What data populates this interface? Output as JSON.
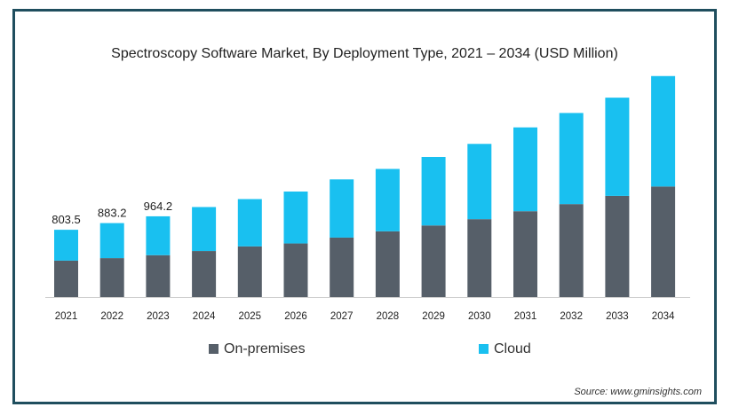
{
  "colors": {
    "on_premises": "#565f69",
    "cloud": "#19c0f0",
    "frame": "#1f4e5e"
  },
  "legend": {
    "on_premises": "On-premises",
    "cloud": "Cloud"
  },
  "source": "Source: www.gminsights.com",
  "chart_data": {
    "type": "bar",
    "stacked": true,
    "title": "Spectroscopy Software Market, By Deployment Type, 2021 – 2034 (USD Million)",
    "categories": [
      "2021",
      "2022",
      "2023",
      "2024",
      "2025",
      "2026",
      "2027",
      "2028",
      "2029",
      "2030",
      "2031",
      "2032",
      "2033",
      "2034"
    ],
    "series": [
      {
        "name": "On-premises",
        "values": [
          435,
          465,
          500,
          550,
          605,
          640,
          710,
          785,
          855,
          930,
          1025,
          1110,
          1208,
          1320
        ]
      },
      {
        "name": "Cloud",
        "values": [
          368.5,
          418.2,
          464.2,
          525,
          565,
          620,
          695,
          745,
          818,
          899,
          1001,
          1088,
          1173,
          1319
        ]
      }
    ],
    "data_labels": [
      "803.5",
      "883.2",
      "964.2",
      "",
      "",
      "",
      "",
      "",
      "",
      "",
      "",
      "",
      "",
      ""
    ],
    "legend_position": "bottom",
    "grid": false,
    "ylim": [
      0,
      2700
    ]
  }
}
